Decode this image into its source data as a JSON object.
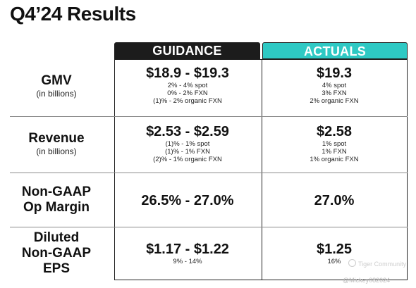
{
  "title": "Q4’24 Results",
  "headers": {
    "guidance": "GUIDANCE",
    "actuals": "ACTUALS"
  },
  "rows": [
    {
      "label": "GMV",
      "sublabel": "(in billions)",
      "guidance": {
        "value": "$18.9 - $19.3",
        "lines": [
          "2% - 4% spot",
          "0% - 2% FXN",
          "(1)% - 2% organic FXN"
        ]
      },
      "actuals": {
        "value": "$19.3",
        "lines": [
          "4% spot",
          "3% FXN",
          "2% organic FXN"
        ]
      }
    },
    {
      "label": "Revenue",
      "sublabel": "(in billions)",
      "guidance": {
        "value": "$2.53 - $2.59",
        "lines": [
          "(1)% - 1% spot",
          "(1)% - 1% FXN",
          "(2)% - 1% organic FXN"
        ]
      },
      "actuals": {
        "value": "$2.58",
        "lines": [
          "1% spot",
          "1% FXN",
          "1% organic FXN"
        ]
      }
    },
    {
      "label_lines": [
        "Non-GAAP",
        "Op Margin"
      ],
      "guidance": {
        "value": "26.5% - 27.0%"
      },
      "actuals": {
        "value": "27.0%"
      }
    },
    {
      "label_lines": [
        "Diluted",
        "Non-GAAP",
        "EPS"
      ],
      "guidance": {
        "value": "$1.17 - $1.22",
        "lines": [
          "9% - 14%"
        ]
      },
      "actuals": {
        "value": "$1.25",
        "lines": [
          "16%"
        ]
      }
    }
  ],
  "watermark": {
    "brand": "Tiger Community",
    "user": "@Mickey082024"
  }
}
